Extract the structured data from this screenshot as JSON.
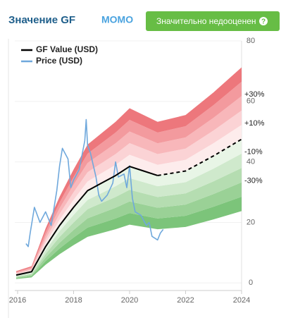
{
  "chart_data": {
    "type": "line",
    "title": "Значение GF",
    "subtitle": "MOMO",
    "button": "Значительно недооценен",
    "button_icon": "?",
    "xlim": [
      2015.9,
      2024
    ],
    "ylim": [
      -2.5,
      80
    ],
    "xticks": [
      2016,
      2018,
      2020,
      2022,
      2024
    ],
    "yticks": [
      0,
      20,
      40,
      60,
      80
    ],
    "projection_start": 2021,
    "bands": {
      "edges": [
        -50,
        -40,
        -30,
        -20,
        -10,
        0,
        10,
        20,
        30,
        40,
        50
      ],
      "colors": [
        "#7cc47a",
        "#9ad196",
        "#b5ddb1",
        "#cfe9cc",
        "#e8f5e6",
        "#fdecec",
        "#fbd3d5",
        "#f8b7ba",
        "#f39a9e",
        "#ed777c"
      ]
    },
    "band_labels": [
      {
        "value": 30,
        "label": "+30%"
      },
      {
        "value": 10,
        "label": "+10%"
      },
      {
        "value": -10,
        "label": "-10%"
      },
      {
        "value": -30,
        "label": "-30%"
      }
    ],
    "series": [
      {
        "name": "GF Value (USD)",
        "color": "#000000",
        "x": [
          2015.95,
          2016.5,
          2017,
          2017.5,
          2018,
          2018.5,
          2019,
          2019.5,
          2020,
          2020.5,
          2021,
          2022,
          2023,
          2024
        ],
        "values": [
          2.6,
          3.7,
          12,
          19,
          25,
          30.5,
          33,
          35.5,
          38.5,
          37,
          35.5,
          37,
          42,
          47.5
        ]
      },
      {
        "name": "Price (USD)",
        "color": "#6fa8dc",
        "x": [
          2016.3,
          2016.38,
          2016.45,
          2016.6,
          2016.8,
          2017.0,
          2017.2,
          2017.4,
          2017.5,
          2017.6,
          2017.8,
          2017.9,
          2018.0,
          2018.2,
          2018.4,
          2018.45,
          2018.5,
          2018.6,
          2018.8,
          2018.9,
          2019.0,
          2019.2,
          2019.4,
          2019.5,
          2019.6,
          2019.8,
          2019.9,
          2020.0,
          2020.1,
          2020.2,
          2020.4,
          2020.6,
          2020.7,
          2020.8,
          2021.0,
          2021.1,
          2021.2
        ],
        "values": [
          13,
          12,
          16.5,
          25,
          20,
          23.5,
          19,
          30.5,
          38.7,
          44.5,
          41,
          31.5,
          34,
          37.5,
          47,
          54,
          45.5,
          43,
          35,
          29,
          27,
          29,
          33,
          40,
          35,
          36,
          31.5,
          38.7,
          28,
          23.5,
          22.4,
          19,
          20,
          15.4,
          14.2,
          16.5,
          17.7
        ]
      }
    ]
  }
}
